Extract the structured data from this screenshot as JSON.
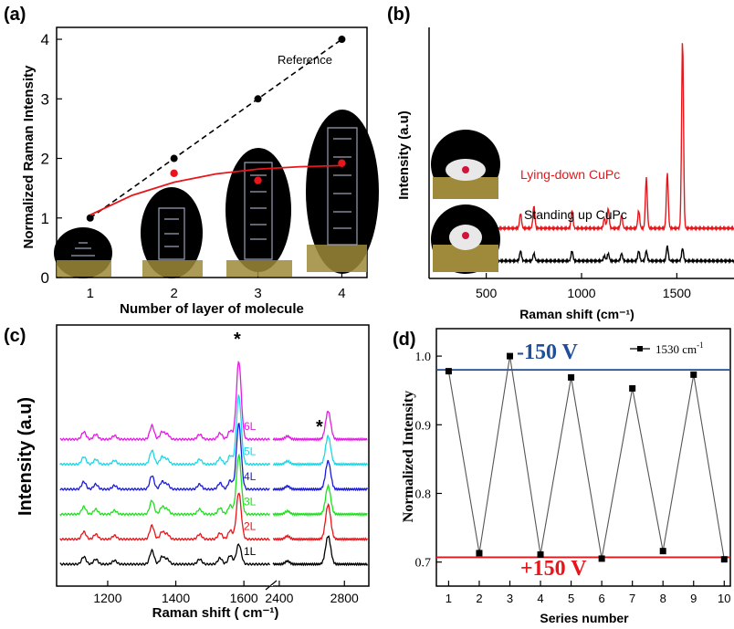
{
  "chart_data": [
    {
      "panel": "(a)",
      "type": "scatter",
      "xlabel": "Number of layer of molecule",
      "ylabel": "Normalized Raman Intensity",
      "x_ticks": [
        "1",
        "2",
        "3",
        "4"
      ],
      "y_ticks": [
        "0",
        "1",
        "2",
        "3",
        "4"
      ],
      "xlim": [
        0.6,
        4.3
      ],
      "ylim": [
        0,
        4.2
      ],
      "series": [
        {
          "name": "Reference",
          "color": "#000000",
          "line": "dashed",
          "x": [
            1,
            2,
            3,
            4
          ],
          "y": [
            1.0,
            2.0,
            3.0,
            4.0
          ]
        },
        {
          "name": "",
          "color": "#e8161b",
          "line": "fit",
          "x": [
            2,
            3,
            4
          ],
          "y": [
            1.75,
            1.63,
            1.92
          ]
        }
      ],
      "fit_curve": {
        "x": [
          1.0,
          1.5,
          2.0,
          2.5,
          3.0,
          3.5,
          4.0
        ],
        "y": [
          1.05,
          1.38,
          1.6,
          1.74,
          1.82,
          1.86,
          1.88
        ]
      }
    },
    {
      "panel": "(b)",
      "type": "line",
      "xlabel": "Raman shift (cm⁻¹)",
      "ylabel": "Intensity (a.u)",
      "x_ticks": [
        "500",
        "1000",
        "1500"
      ],
      "xlim": [
        200,
        1800
      ],
      "ylim": [
        0,
        1.0
      ],
      "series": [
        {
          "name": "Lying-down CuPc",
          "color": "#e8161b",
          "baseline": 0.2,
          "peaks": [
            [
              680,
              0.06
            ],
            [
              750,
              0.09
            ],
            [
              950,
              0.07
            ],
            [
              1120,
              0.04
            ],
            [
              1140,
              0.08
            ],
            [
              1210,
              0.05
            ],
            [
              1300,
              0.07
            ],
            [
              1340,
              0.2
            ],
            [
              1450,
              0.22
            ],
            [
              1530,
              0.75
            ]
          ]
        },
        {
          "name": "Standing up CuPc",
          "color": "#000000",
          "baseline": 0.07,
          "peaks": [
            [
              680,
              0.04
            ],
            [
              750,
              0.03
            ],
            [
              950,
              0.04
            ],
            [
              1120,
              0.02
            ],
            [
              1140,
              0.03
            ],
            [
              1210,
              0.03
            ],
            [
              1300,
              0.04
            ],
            [
              1340,
              0.04
            ],
            [
              1450,
              0.06
            ],
            [
              1530,
              0.05
            ]
          ]
        }
      ]
    },
    {
      "panel": "(c)",
      "type": "line",
      "xlabel": "Raman shift ( cm⁻¹)",
      "ylabel": "Intensity (a.u)",
      "x_ticks_left": [
        "1200",
        "1400",
        "1600"
      ],
      "x_ticks_right": [
        "2400",
        "2800"
      ],
      "xlim_left": [
        1050,
        1680
      ],
      "xlim_right": [
        2350,
        2950
      ],
      "peak_markers": [
        "*",
        "*"
      ],
      "series": [
        {
          "name": "1L",
          "color": "#000000",
          "offset": 0.0,
          "g": 0.32,
          "d2": 0.45
        },
        {
          "name": "2L",
          "color": "#e8161b",
          "offset": 1.0,
          "g": 0.75,
          "d2": 0.55
        },
        {
          "name": "3L",
          "color": "#1ee01e",
          "offset": 2.0,
          "g": 0.95,
          "d2": 0.45
        },
        {
          "name": "4L",
          "color": "#1a1adc",
          "offset": 3.0,
          "g": 1.05,
          "d2": 0.45
        },
        {
          "name": "5L",
          "color": "#19d9e6",
          "offset": 4.0,
          "g": 1.1,
          "d2": 0.45
        },
        {
          "name": "6L",
          "color": "#e619e6",
          "offset": 5.0,
          "g": 1.25,
          "d2": 0.45
        }
      ]
    },
    {
      "panel": "(d)",
      "type": "line",
      "xlabel": "Series number",
      "ylabel": "Normalized Intensity",
      "x_ticks": [
        "1",
        "2",
        "3",
        "4",
        "5",
        "6",
        "7",
        "8",
        "9",
        "10"
      ],
      "y_ticks": [
        "0.7",
        "0.8",
        "0.9",
        "1.0"
      ],
      "xlim": [
        0.6,
        10.2
      ],
      "ylim": [
        0.665,
        1.04
      ],
      "legend": "1530 cm⁻¹",
      "ref_lines": [
        {
          "label": "-150 V",
          "y": 0.98,
          "color": "#1f4e9a"
        },
        {
          "label": "+150 V",
          "y": 0.707,
          "color": "#e8161b"
        }
      ],
      "series": [
        {
          "name": "1530 cm⁻¹",
          "color": "#000000",
          "x": [
            1,
            2,
            3,
            4,
            5,
            6,
            7,
            8,
            9,
            10
          ],
          "y": [
            0.978,
            0.713,
            1.0,
            0.711,
            0.969,
            0.705,
            0.953,
            0.716,
            0.973,
            0.704
          ]
        }
      ]
    }
  ],
  "labels": {
    "a": "(a)",
    "b": "(b)",
    "c": "(c)",
    "d": "(d)",
    "reference": "Reference",
    "lying": "Lying-down CuPc",
    "standing": "Standing up CuPc",
    "legend_d": "1530 cm",
    "legend_d_sup": "-1",
    "minus150": "-150 V",
    "plus150": "+150 V",
    "star": "*"
  },
  "colors": {
    "ellipse": "#000000",
    "gold": "#b8a14a"
  }
}
